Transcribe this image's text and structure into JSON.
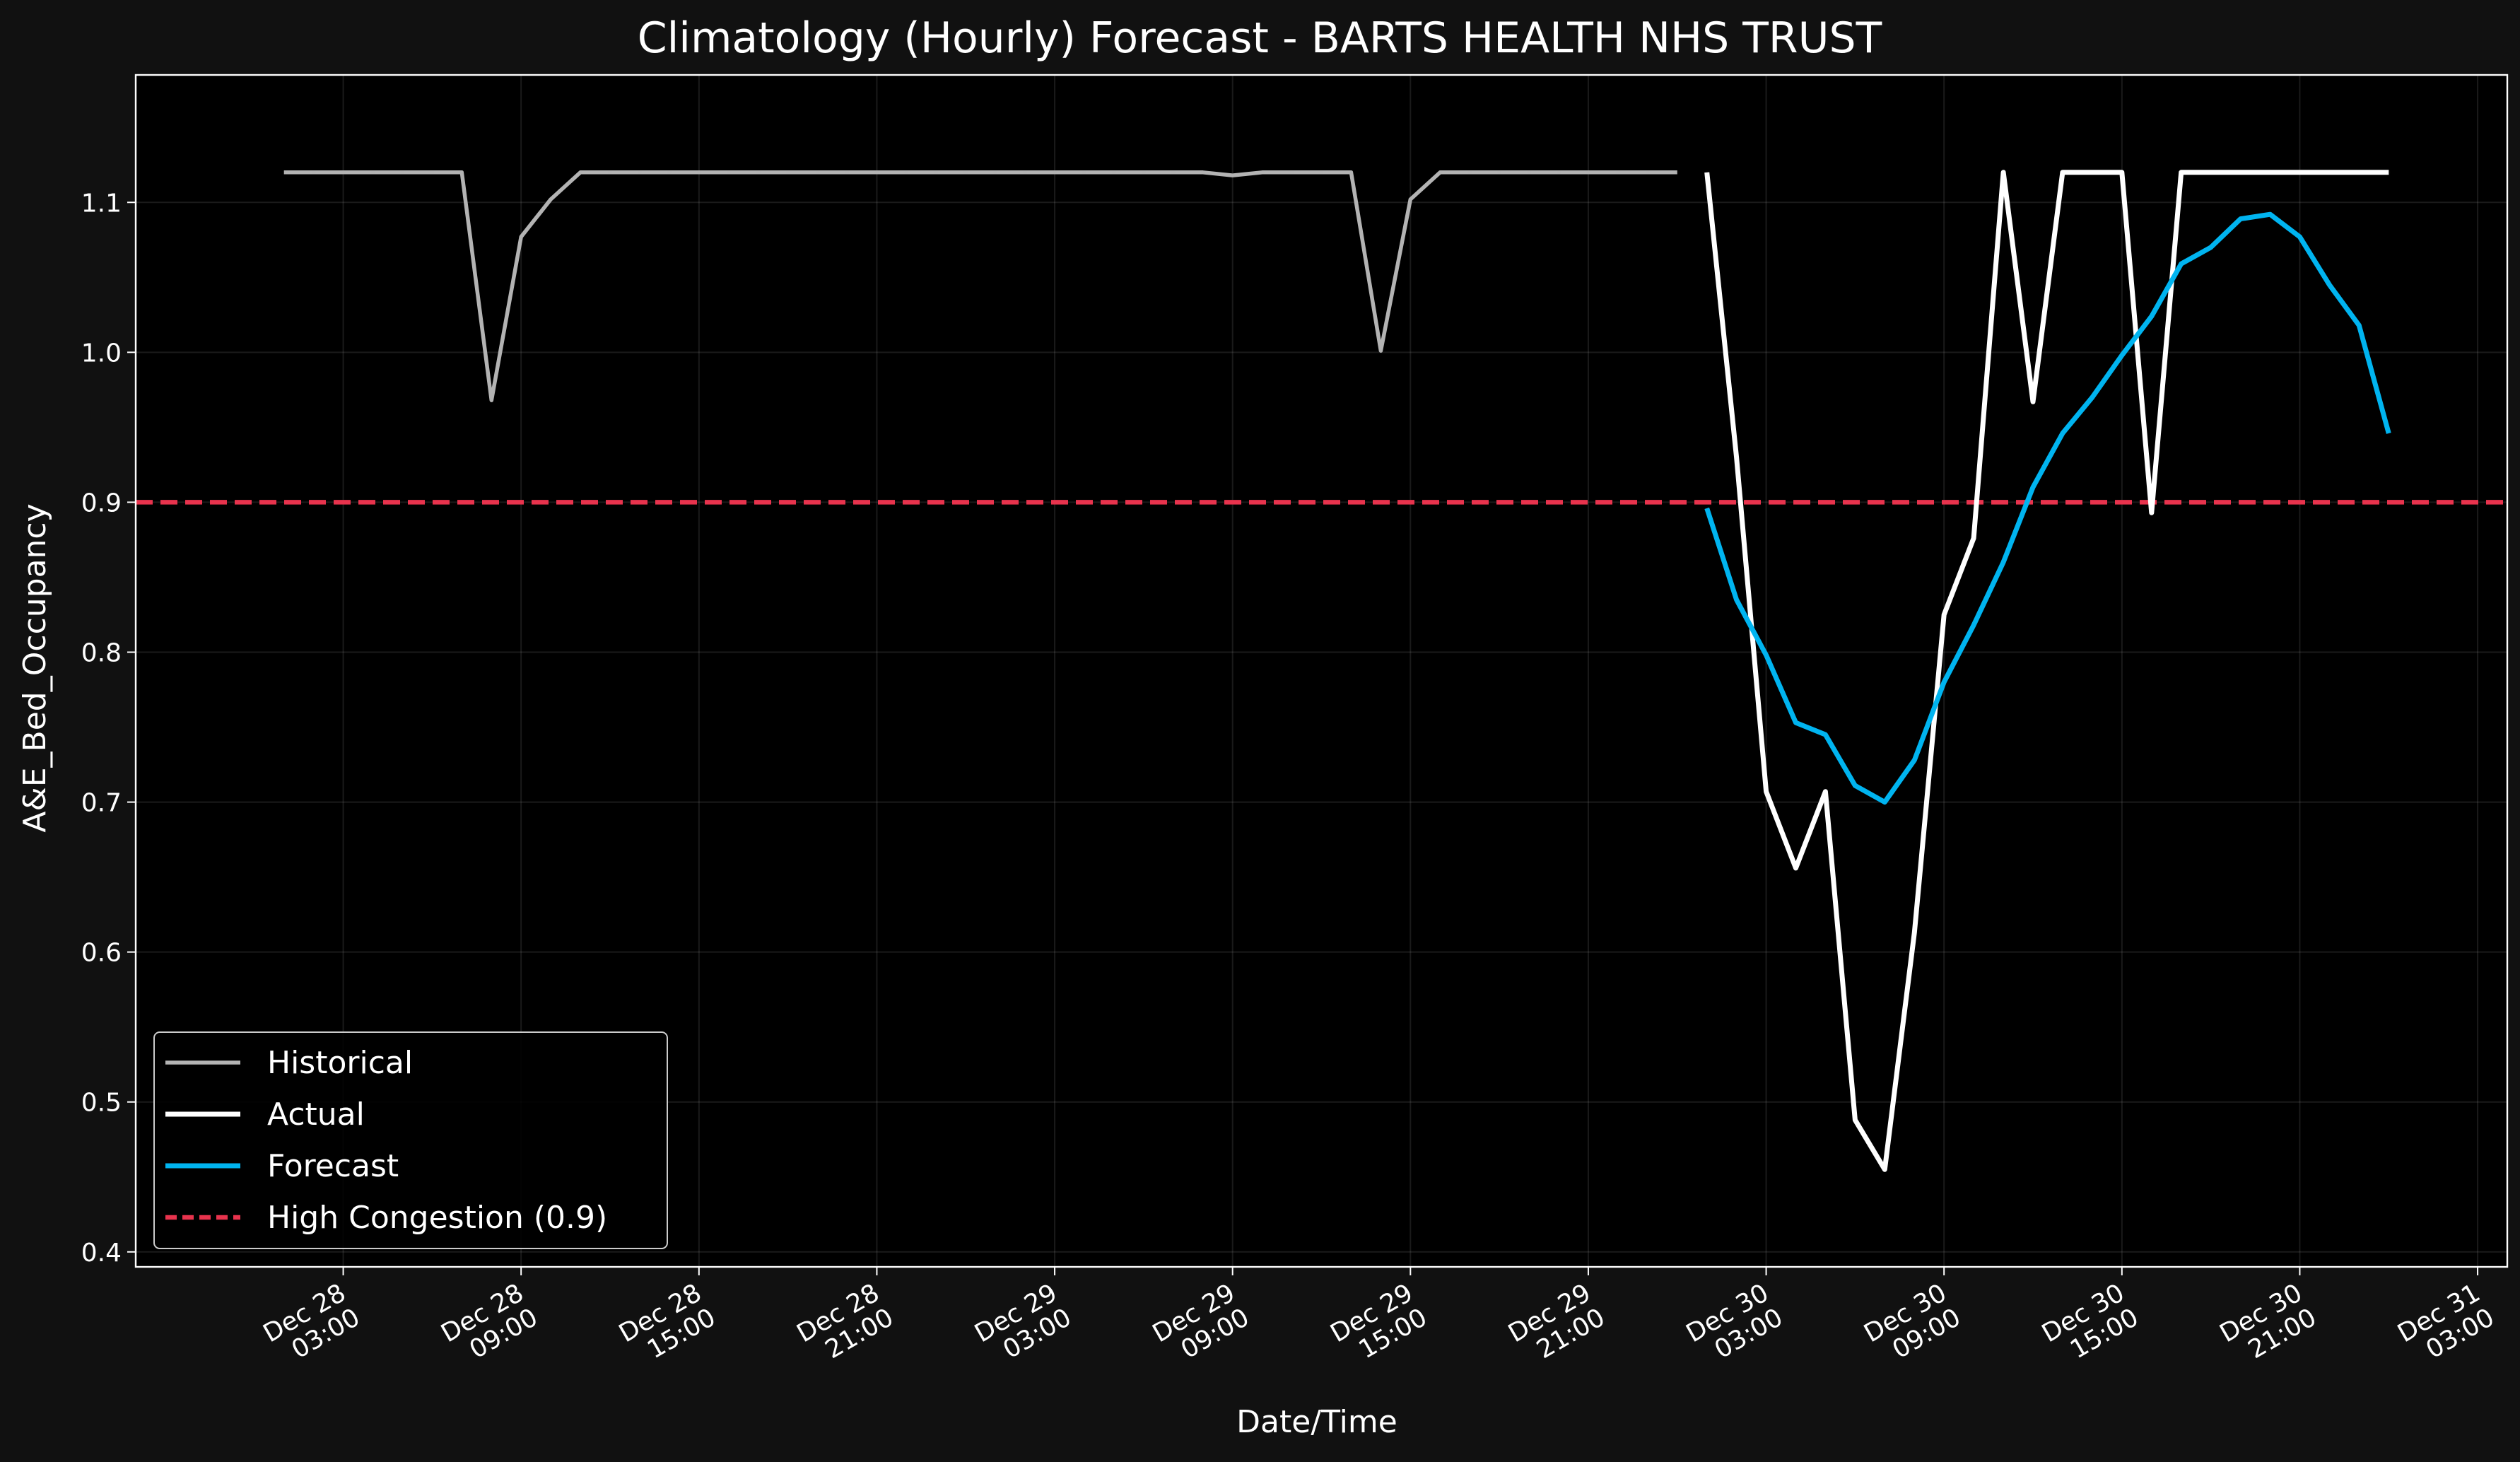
{
  "chart_data": {
    "type": "line",
    "title": "Climatology (Hourly) Forecast - BARTS HEALTH NHS TRUST",
    "xlabel": "Date/Time",
    "ylabel": "A&E_Bed_Occupancy",
    "ylim": [
      0.39,
      1.185
    ],
    "y_ticks": [
      "0.4",
      "0.5",
      "0.6",
      "0.7",
      "0.8",
      "0.9",
      "1.0",
      "1.1"
    ],
    "x_range": [
      "2024-12-27T20:00",
      "2024-12-31T04:00"
    ],
    "x_ticks": [
      {
        "t": "2024-12-28T03:00",
        "line1": "Dec 28",
        "line2": "03:00"
      },
      {
        "t": "2024-12-28T09:00",
        "line1": "Dec 28",
        "line2": "09:00"
      },
      {
        "t": "2024-12-28T15:00",
        "line1": "Dec 28",
        "line2": "15:00"
      },
      {
        "t": "2024-12-28T21:00",
        "line1": "Dec 28",
        "line2": "21:00"
      },
      {
        "t": "2024-12-29T03:00",
        "line1": "Dec 29",
        "line2": "03:00"
      },
      {
        "t": "2024-12-29T09:00",
        "line1": "Dec 29",
        "line2": "09:00"
      },
      {
        "t": "2024-12-29T15:00",
        "line1": "Dec 29",
        "line2": "15:00"
      },
      {
        "t": "2024-12-29T21:00",
        "line1": "Dec 29",
        "line2": "21:00"
      },
      {
        "t": "2024-12-30T03:00",
        "line1": "Dec 30",
        "line2": "03:00"
      },
      {
        "t": "2024-12-30T09:00",
        "line1": "Dec 30",
        "line2": "09:00"
      },
      {
        "t": "2024-12-30T15:00",
        "line1": "Dec 30",
        "line2": "15:00"
      },
      {
        "t": "2024-12-30T21:00",
        "line1": "Dec 30",
        "line2": "21:00"
      },
      {
        "t": "2024-12-31T03:00",
        "line1": "Dec 31",
        "line2": "03:00"
      }
    ],
    "grid": true,
    "legend_position": "lower-left",
    "series": [
      {
        "name": "Historical",
        "color": "#b3b3b3",
        "points": [
          [
            "2024-12-28T01:00",
            1.12
          ],
          [
            "2024-12-28T02:00",
            1.12
          ],
          [
            "2024-12-28T03:00",
            1.12
          ],
          [
            "2024-12-28T04:00",
            1.12
          ],
          [
            "2024-12-28T05:00",
            1.12
          ],
          [
            "2024-12-28T06:00",
            1.12
          ],
          [
            "2024-12-28T07:00",
            1.12
          ],
          [
            "2024-12-28T08:00",
            0.968
          ],
          [
            "2024-12-28T09:00",
            1.077
          ],
          [
            "2024-12-28T10:00",
            1.102
          ],
          [
            "2024-12-28T11:00",
            1.12
          ],
          [
            "2024-12-28T12:00",
            1.12
          ],
          [
            "2024-12-28T13:00",
            1.12
          ],
          [
            "2024-12-28T14:00",
            1.12
          ],
          [
            "2024-12-28T15:00",
            1.12
          ],
          [
            "2024-12-28T16:00",
            1.12
          ],
          [
            "2024-12-28T17:00",
            1.12
          ],
          [
            "2024-12-28T18:00",
            1.12
          ],
          [
            "2024-12-28T19:00",
            1.12
          ],
          [
            "2024-12-28T20:00",
            1.12
          ],
          [
            "2024-12-28T21:00",
            1.12
          ],
          [
            "2024-12-28T22:00",
            1.12
          ],
          [
            "2024-12-28T23:00",
            1.12
          ],
          [
            "2024-12-29T00:00",
            1.12
          ],
          [
            "2024-12-29T01:00",
            1.12
          ],
          [
            "2024-12-29T02:00",
            1.12
          ],
          [
            "2024-12-29T03:00",
            1.12
          ],
          [
            "2024-12-29T04:00",
            1.12
          ],
          [
            "2024-12-29T05:00",
            1.12
          ],
          [
            "2024-12-29T06:00",
            1.12
          ],
          [
            "2024-12-29T07:00",
            1.12
          ],
          [
            "2024-12-29T08:00",
            1.12
          ],
          [
            "2024-12-29T09:00",
            1.118
          ],
          [
            "2024-12-29T10:00",
            1.12
          ],
          [
            "2024-12-29T11:00",
            1.12
          ],
          [
            "2024-12-29T12:00",
            1.12
          ],
          [
            "2024-12-29T13:00",
            1.12
          ],
          [
            "2024-12-29T14:00",
            1.001
          ],
          [
            "2024-12-29T15:00",
            1.102
          ],
          [
            "2024-12-29T16:00",
            1.12
          ],
          [
            "2024-12-29T17:00",
            1.12
          ],
          [
            "2024-12-29T18:00",
            1.12
          ],
          [
            "2024-12-29T19:00",
            1.12
          ],
          [
            "2024-12-29T20:00",
            1.12
          ],
          [
            "2024-12-29T21:00",
            1.12
          ],
          [
            "2024-12-29T22:00",
            1.12
          ],
          [
            "2024-12-29T23:00",
            1.12
          ],
          [
            "2024-12-30T00:00",
            1.12
          ]
        ]
      },
      {
        "name": "Actual",
        "color": "#ffffff",
        "points": [
          [
            "2024-12-30T01:00",
            1.12
          ],
          [
            "2024-12-30T02:00",
            0.93
          ],
          [
            "2024-12-30T03:00",
            0.707
          ],
          [
            "2024-12-30T04:00",
            0.656
          ],
          [
            "2024-12-30T05:00",
            0.707
          ],
          [
            "2024-12-30T06:00",
            0.488
          ],
          [
            "2024-12-30T07:00",
            0.455
          ],
          [
            "2024-12-30T08:00",
            0.613
          ],
          [
            "2024-12-30T09:00",
            0.825
          ],
          [
            "2024-12-30T10:00",
            0.876
          ],
          [
            "2024-12-30T11:00",
            1.12
          ],
          [
            "2024-12-30T12:00",
            0.967
          ],
          [
            "2024-12-30T13:00",
            1.12
          ],
          [
            "2024-12-30T14:00",
            1.12
          ],
          [
            "2024-12-30T15:00",
            1.12
          ],
          [
            "2024-12-30T16:00",
            0.893
          ],
          [
            "2024-12-30T17:00",
            1.12
          ],
          [
            "2024-12-30T18:00",
            1.12
          ],
          [
            "2024-12-30T19:00",
            1.12
          ],
          [
            "2024-12-30T20:00",
            1.12
          ],
          [
            "2024-12-30T21:00",
            1.12
          ],
          [
            "2024-12-30T22:00",
            1.12
          ],
          [
            "2024-12-30T23:00",
            1.12
          ],
          [
            "2024-12-31T00:00",
            1.12
          ]
        ]
      },
      {
        "name": "Forecast",
        "color": "#00b4f0",
        "points": [
          [
            "2024-12-30T01:00",
            0.896
          ],
          [
            "2024-12-30T02:00",
            0.835
          ],
          [
            "2024-12-30T03:00",
            0.798
          ],
          [
            "2024-12-30T04:00",
            0.753
          ],
          [
            "2024-12-30T05:00",
            0.745
          ],
          [
            "2024-12-30T06:00",
            0.711
          ],
          [
            "2024-12-30T07:00",
            0.7
          ],
          [
            "2024-12-30T08:00",
            0.728
          ],
          [
            "2024-12-30T09:00",
            0.78
          ],
          [
            "2024-12-30T10:00",
            0.818
          ],
          [
            "2024-12-30T11:00",
            0.86
          ],
          [
            "2024-12-30T12:00",
            0.91
          ],
          [
            "2024-12-30T13:00",
            0.946
          ],
          [
            "2024-12-30T14:00",
            0.97
          ],
          [
            "2024-12-30T15:00",
            0.998
          ],
          [
            "2024-12-30T16:00",
            1.024
          ],
          [
            "2024-12-30T17:00",
            1.059
          ],
          [
            "2024-12-30T18:00",
            1.07
          ],
          [
            "2024-12-30T19:00",
            1.089
          ],
          [
            "2024-12-30T20:00",
            1.092
          ],
          [
            "2024-12-30T21:00",
            1.077
          ],
          [
            "2024-12-30T22:00",
            1.045
          ],
          [
            "2024-12-30T23:00",
            1.018
          ],
          [
            "2024-12-31T00:00",
            0.946
          ]
        ]
      }
    ],
    "threshold": {
      "name": "High Congestion (0.9)",
      "value": 0.9,
      "color": "#e8334d",
      "style": "dashed"
    }
  }
}
